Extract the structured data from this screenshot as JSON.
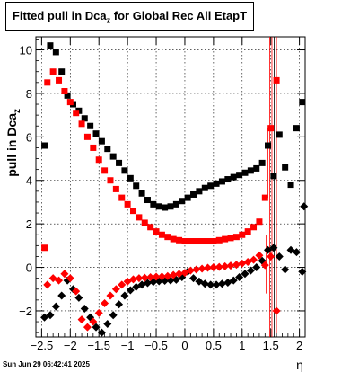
{
  "chart_data": {
    "type": "scatter",
    "title": "Fitted pull in Dca",
    "title_sub": "z",
    "title_tail": " for Global Rec All EtapT",
    "ylabel": "pull in Dca",
    "ylabel_sub": "z",
    "xlabel": "η",
    "xlim": [
      -2.6,
      2.1
    ],
    "ylim": [
      -3.2,
      10.6
    ],
    "grid": true,
    "x_ticks": [
      -2.5,
      -2,
      -1.5,
      -1,
      -0.5,
      0,
      0.5,
      1,
      1.5,
      2
    ],
    "x_tick_labels": [
      "−2.5",
      "−2",
      "−1.5",
      "−1",
      "−0.5",
      "0",
      "0.5",
      "1",
      "1.5",
      "2"
    ],
    "y_ticks": [
      -2,
      0,
      2,
      4,
      6,
      8,
      10
    ],
    "y_tick_labels": [
      "−2",
      "0",
      "2",
      "4",
      "6",
      "8",
      "10"
    ],
    "series": [
      {
        "color": "#000000",
        "marker": "square",
        "points": [
          [
            -2.45,
            5.6
          ],
          [
            -2.35,
            10.2
          ],
          [
            -2.25,
            9.9
          ],
          [
            -2.15,
            9.0
          ],
          [
            -2.05,
            7.9
          ],
          [
            -1.95,
            7.5
          ],
          [
            -1.85,
            7.2
          ],
          [
            -1.75,
            6.85
          ],
          [
            -1.65,
            6.5
          ],
          [
            -1.55,
            6.15
          ],
          [
            -1.45,
            5.8
          ],
          [
            -1.35,
            5.45
          ],
          [
            -1.25,
            5.1
          ],
          [
            -1.15,
            4.8
          ],
          [
            -1.05,
            4.45
          ],
          [
            -0.95,
            4.1
          ],
          [
            -0.85,
            3.75
          ],
          [
            -0.75,
            3.4
          ],
          [
            -0.65,
            3.1
          ],
          [
            -0.55,
            2.9
          ],
          [
            -0.45,
            2.8
          ],
          [
            -0.35,
            2.75
          ],
          [
            -0.25,
            2.8
          ],
          [
            -0.15,
            2.9
          ],
          [
            -0.05,
            3.05
          ],
          [
            0.05,
            3.2
          ],
          [
            0.15,
            3.35
          ],
          [
            0.25,
            3.5
          ],
          [
            0.35,
            3.65
          ],
          [
            0.45,
            3.75
          ],
          [
            0.55,
            3.85
          ],
          [
            0.65,
            3.95
          ],
          [
            0.75,
            4.05
          ],
          [
            0.85,
            4.15
          ],
          [
            0.95,
            4.25
          ],
          [
            1.05,
            4.35
          ],
          [
            1.15,
            4.45
          ],
          [
            1.25,
            4.55
          ],
          [
            1.35,
            4.8
          ],
          [
            1.45,
            5.6
          ],
          [
            1.55,
            4.2
          ],
          [
            1.65,
            6.1
          ],
          [
            1.75,
            4.6
          ],
          [
            1.85,
            3.8
          ],
          [
            1.95,
            6.4
          ],
          [
            2.05,
            7.6
          ]
        ]
      },
      {
        "color": "#ff0000",
        "marker": "square",
        "points": [
          [
            -2.45,
            0.9
          ],
          [
            -2.4,
            8.5
          ],
          [
            -2.3,
            9.0
          ],
          [
            -2.2,
            8.6
          ],
          [
            -2.1,
            8.1
          ],
          [
            -2.0,
            7.6
          ],
          [
            -1.9,
            7.1
          ],
          [
            -1.8,
            6.6
          ],
          [
            -1.7,
            6.0
          ],
          [
            -1.6,
            5.5
          ],
          [
            -1.5,
            4.95
          ],
          [
            -1.4,
            4.45
          ],
          [
            -1.3,
            4.0
          ],
          [
            -1.2,
            3.6
          ],
          [
            -1.1,
            3.2
          ],
          [
            -1.0,
            2.9
          ],
          [
            -0.9,
            2.6
          ],
          [
            -0.8,
            2.3
          ],
          [
            -0.7,
            2.05
          ],
          [
            -0.6,
            1.85
          ],
          [
            -0.5,
            1.65
          ],
          [
            -0.4,
            1.5
          ],
          [
            -0.3,
            1.4
          ],
          [
            -0.2,
            1.3
          ],
          [
            -0.1,
            1.25
          ],
          [
            0.0,
            1.2
          ],
          [
            0.1,
            1.2
          ],
          [
            0.2,
            1.2
          ],
          [
            0.3,
            1.2
          ],
          [
            0.4,
            1.2
          ],
          [
            0.5,
            1.2
          ],
          [
            0.6,
            1.25
          ],
          [
            0.7,
            1.3
          ],
          [
            0.8,
            1.35
          ],
          [
            0.9,
            1.4
          ],
          [
            1.0,
            1.5
          ],
          [
            1.1,
            1.65
          ],
          [
            1.2,
            1.85
          ],
          [
            1.3,
            2.1
          ],
          [
            1.4,
            3.2
          ],
          [
            1.5,
            6.4
          ],
          [
            1.6,
            8.6
          ]
        ]
      },
      {
        "color": "#000000",
        "marker": "diamond",
        "points": [
          [
            -2.45,
            -2.3
          ],
          [
            -2.35,
            -2.2
          ],
          [
            -2.25,
            -1.8
          ],
          [
            -2.15,
            -1.3
          ],
          [
            -2.05,
            -0.6
          ],
          [
            -1.95,
            -1.0
          ],
          [
            -1.85,
            -1.4
          ],
          [
            -1.75,
            -1.9
          ],
          [
            -1.65,
            -2.3
          ],
          [
            -1.55,
            -2.75
          ],
          [
            -1.45,
            -3.0
          ],
          [
            -1.35,
            -2.6
          ],
          [
            -1.25,
            -2.2
          ],
          [
            -1.15,
            -1.7
          ],
          [
            -1.05,
            -1.3
          ],
          [
            -0.95,
            -1.05
          ],
          [
            -0.85,
            -0.9
          ],
          [
            -0.75,
            -0.8
          ],
          [
            -0.65,
            -0.72
          ],
          [
            -0.55,
            -0.67
          ],
          [
            -0.45,
            -0.64
          ],
          [
            -0.35,
            -0.62
          ],
          [
            -0.25,
            -0.6
          ],
          [
            -0.15,
            -0.57
          ],
          [
            -0.05,
            -0.45
          ],
          [
            0.05,
            -0.2
          ],
          [
            0.15,
            -0.5
          ],
          [
            0.25,
            -0.65
          ],
          [
            0.35,
            -0.75
          ],
          [
            0.45,
            -0.8
          ],
          [
            0.55,
            -0.8
          ],
          [
            0.65,
            -0.75
          ],
          [
            0.75,
            -0.7
          ],
          [
            0.85,
            -0.6
          ],
          [
            0.95,
            -0.45
          ],
          [
            1.05,
            -0.3
          ],
          [
            1.15,
            -0.15
          ],
          [
            1.25,
            0.0
          ],
          [
            1.35,
            0.3
          ],
          [
            1.45,
            0.8
          ],
          [
            1.55,
            0.9
          ],
          [
            1.65,
            0.5
          ],
          [
            1.75,
            -0.1
          ],
          [
            1.85,
            0.8
          ],
          [
            1.95,
            0.7
          ],
          [
            2.05,
            -0.2
          ],
          [
            2.08,
            2.8
          ]
        ]
      },
      {
        "color": "#ff0000",
        "marker": "diamond",
        "points": [
          [
            -2.4,
            -0.8
          ],
          [
            -2.3,
            -0.5
          ],
          [
            -2.2,
            -0.6
          ],
          [
            -2.1,
            -0.3
          ],
          [
            -2.0,
            -0.5
          ],
          [
            -1.9,
            -1.1
          ],
          [
            -1.8,
            -2.4
          ],
          [
            -1.7,
            -2.75
          ],
          [
            -1.6,
            -2.5
          ],
          [
            -1.5,
            -2.1
          ],
          [
            -1.4,
            -1.65
          ],
          [
            -1.3,
            -1.3
          ],
          [
            -1.2,
            -1.0
          ],
          [
            -1.1,
            -0.8
          ],
          [
            -1.0,
            -0.65
          ],
          [
            -0.9,
            -0.55
          ],
          [
            -0.8,
            -0.5
          ],
          [
            -0.7,
            -0.48
          ],
          [
            -0.6,
            -0.45
          ],
          [
            -0.5,
            -0.43
          ],
          [
            -0.4,
            -0.42
          ],
          [
            -0.3,
            -0.4
          ],
          [
            -0.2,
            -0.35
          ],
          [
            -0.1,
            -0.3
          ],
          [
            0.0,
            -0.25
          ],
          [
            0.1,
            -0.15
          ],
          [
            0.2,
            -0.1
          ],
          [
            0.3,
            -0.06
          ],
          [
            0.4,
            -0.02
          ],
          [
            0.5,
            0.0
          ],
          [
            0.6,
            0.02
          ],
          [
            0.7,
            0.05
          ],
          [
            0.8,
            0.08
          ],
          [
            0.9,
            0.12
          ],
          [
            1.0,
            0.18
          ],
          [
            1.1,
            0.25
          ],
          [
            1.2,
            0.35
          ],
          [
            1.3,
            0.55
          ],
          [
            1.4,
            0.1
          ],
          [
            1.5,
            0.5
          ],
          [
            1.6,
            -2.0
          ]
        ]
      }
    ]
  },
  "footer": {
    "timestamp": "Sun Jun 29 06:42:41 2025"
  }
}
